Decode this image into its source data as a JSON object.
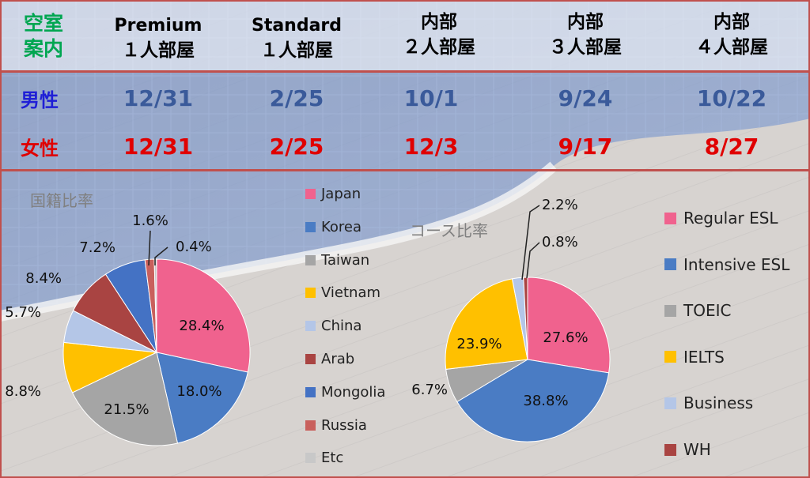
{
  "header": {
    "corner_line1": "空室",
    "corner_line2": "案内",
    "columns": [
      {
        "line1": "Premium",
        "line2": "１人部屋"
      },
      {
        "line1": "Standard",
        "line2": "１人部屋"
      },
      {
        "line1": "内部",
        "line2": "２人部屋"
      },
      {
        "line1": "内部",
        "line2": "３人部屋"
      },
      {
        "line1": "内部",
        "line2": "４人部屋"
      }
    ]
  },
  "rows": [
    {
      "label": "男性",
      "label_color": "#1f1fd6",
      "value_color": "#3a5a9a",
      "values": [
        "12/31",
        "2/25",
        "10/1",
        "9/24",
        "10/22"
      ]
    },
    {
      "label": "女性",
      "label_color": "#e00000",
      "value_color": "#e00000",
      "values": [
        "12/31",
        "2/25",
        "12/3",
        "9/17",
        "8/27"
      ]
    }
  ],
  "colors": {
    "header_green": "#00a651",
    "border_red": "#c0504d"
  },
  "chart_data": [
    {
      "type": "pie",
      "title": "国籍比率",
      "categories": [
        "Japan",
        "Korea",
        "Taiwan",
        "Vietnam",
        "China",
        "Arab",
        "Mongolia",
        "Russia",
        "Etc"
      ],
      "values": [
        28.4,
        18.0,
        21.5,
        8.8,
        5.7,
        8.4,
        7.2,
        1.6,
        0.4
      ],
      "labels": [
        "28.4%",
        "18.0%",
        "21.5%",
        "8.8%",
        "5.7%",
        "8.4%",
        "7.2%",
        "1.6%",
        "0.4%"
      ],
      "colors": [
        "#f0628e",
        "#4a7cc4",
        "#a5a5a5",
        "#ffc000",
        "#b4c6e7",
        "#a94442",
        "#4472c4",
        "#c9605c",
        "#c8c8c8"
      ],
      "legend_position": "right"
    },
    {
      "type": "pie",
      "title": "コース比率",
      "categories": [
        "Regular ESL",
        "Intensive ESL",
        "TOEIC",
        "IELTS",
        "Business",
        "WH"
      ],
      "values": [
        27.6,
        38.8,
        6.7,
        23.9,
        2.2,
        0.8
      ],
      "labels": [
        "27.6%",
        "38.8%",
        "6.7%",
        "23.9%",
        "2.2%",
        "0.8%"
      ],
      "colors": [
        "#f0628e",
        "#4a7cc4",
        "#a5a5a5",
        "#ffc000",
        "#b4c6e7",
        "#a94442"
      ],
      "legend_position": "right"
    }
  ]
}
